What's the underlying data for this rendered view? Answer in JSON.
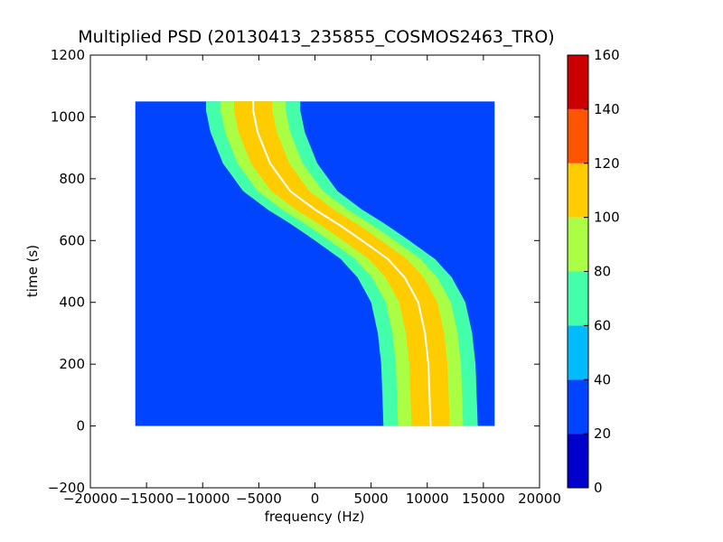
{
  "chart_data": {
    "type": "heatmap",
    "title": "Multiplied PSD (20130413_235855_COSMOS2463_TRO)",
    "xlabel": "frequency (Hz)",
    "ylabel": "time (s)",
    "xlim": [
      -20000,
      20000
    ],
    "ylim": [
      -200,
      1200
    ],
    "xticks": [
      -20000,
      -15000,
      -10000,
      -5000,
      0,
      5000,
      10000,
      15000,
      20000
    ],
    "xtick_labels": [
      "−20000",
      "−15000",
      "−10000",
      "−5000",
      "0",
      "5000",
      "10000",
      "15000",
      "20000"
    ],
    "yticks": [
      -200,
      0,
      200,
      400,
      600,
      800,
      1000,
      1200
    ],
    "ytick_labels": [
      "−200",
      "0",
      "200",
      "400",
      "600",
      "800",
      "1000",
      "1200"
    ],
    "data_extent": {
      "x": [
        -16000,
        16000
      ],
      "y": [
        0,
        1050
      ]
    },
    "colorbar": {
      "levels": [
        0,
        20,
        40,
        60,
        80,
        100,
        120,
        140,
        160
      ],
      "tick_labels": [
        "0",
        "20",
        "40",
        "60",
        "80",
        "100",
        "120",
        "140",
        "160"
      ],
      "colors": [
        "#0000cd",
        "#0044ff",
        "#00bbff",
        "#44ffaa",
        "#aaff44",
        "#ffcc00",
        "#ff5500",
        "#cc0000"
      ]
    },
    "background_color": "#0044ff",
    "main_trace": {
      "description_values": "frequency (Hz) at time (s) of the Doppler curve",
      "points": [
        {
          "t": 1020,
          "f": -5500
        },
        {
          "t": 950,
          "f": -5100
        },
        {
          "t": 850,
          "f": -4000
        },
        {
          "t": 760,
          "f": -2200
        },
        {
          "t": 700,
          "f": 0
        },
        {
          "t": 650,
          "f": 2200
        },
        {
          "t": 600,
          "f": 4200
        },
        {
          "t": 540,
          "f": 6500
        },
        {
          "t": 480,
          "f": 8000
        },
        {
          "t": 400,
          "f": 9200
        },
        {
          "t": 300,
          "f": 9800
        },
        {
          "t": 200,
          "f": 10100
        },
        {
          "t": 100,
          "f": 10200
        },
        {
          "t": 0,
          "f": 10300
        }
      ],
      "bands": [
        {
          "level": 60,
          "half_width": 4200
        },
        {
          "level": 80,
          "half_width": 2900
        },
        {
          "level": 100,
          "half_width": 1700
        }
      ]
    }
  }
}
